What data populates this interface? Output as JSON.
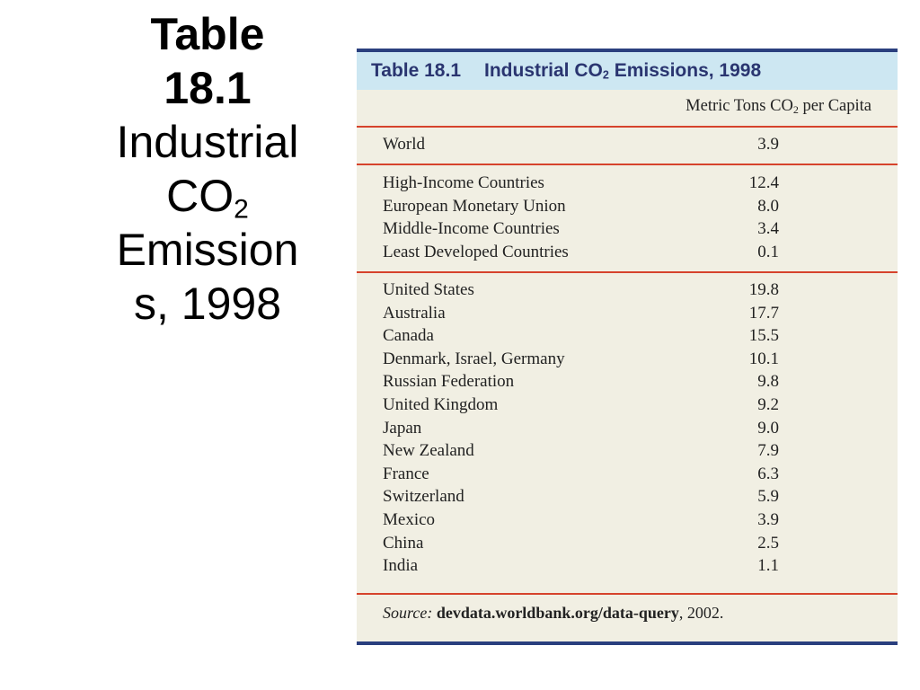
{
  "slide": {
    "title_bold_1": "Table",
    "title_bold_2": "18.1",
    "title_line_1": "Industrial",
    "title_co": "CO",
    "title_sub": "2",
    "title_line_3": "Emission",
    "title_line_4": "s, 1998"
  },
  "table": {
    "number": "Table 18.1",
    "caption_pre": "Industrial CO",
    "caption_sub": "2",
    "caption_post": " Emissions, 1998",
    "column_header_pre": "Metric Tons CO",
    "column_header_sub": "2",
    "column_header_post": " per Capita",
    "world": [
      {
        "country": "World",
        "value": "3.9"
      }
    ],
    "income_groups": [
      {
        "country": "High-Income Countries",
        "value": "12.4"
      },
      {
        "country": "European Monetary Union",
        "value": "8.0"
      },
      {
        "country": "Middle-Income Countries",
        "value": "3.4"
      },
      {
        "country": "Least Developed Countries",
        "value": "0.1"
      }
    ],
    "countries": [
      {
        "country": "United States",
        "value": "19.8"
      },
      {
        "country": "Australia",
        "value": "17.7"
      },
      {
        "country": "Canada",
        "value": "15.5"
      },
      {
        "country": "Denmark, Israel, Germany",
        "value": "10.1"
      },
      {
        "country": "Russian Federation",
        "value": "9.8"
      },
      {
        "country": "United Kingdom",
        "value": "9.2"
      },
      {
        "country": "Japan",
        "value": "9.0"
      },
      {
        "country": "New Zealand",
        "value": "7.9"
      },
      {
        "country": "France",
        "value": "6.3"
      },
      {
        "country": "Switzerland",
        "value": "5.9"
      },
      {
        "country": "Mexico",
        "value": "3.9"
      },
      {
        "country": "China",
        "value": "2.5"
      },
      {
        "country": "India",
        "value": "1.1"
      }
    ],
    "source_label": "Source:",
    "source_url": "devdata.worldbank.org/data-query",
    "source_year": ", 2002."
  },
  "colors": {
    "rule_blue": "#2a3f7e",
    "caption_band": "#cde7f2",
    "divider_red": "#d6432c",
    "table_bg": "#f1efe3"
  }
}
